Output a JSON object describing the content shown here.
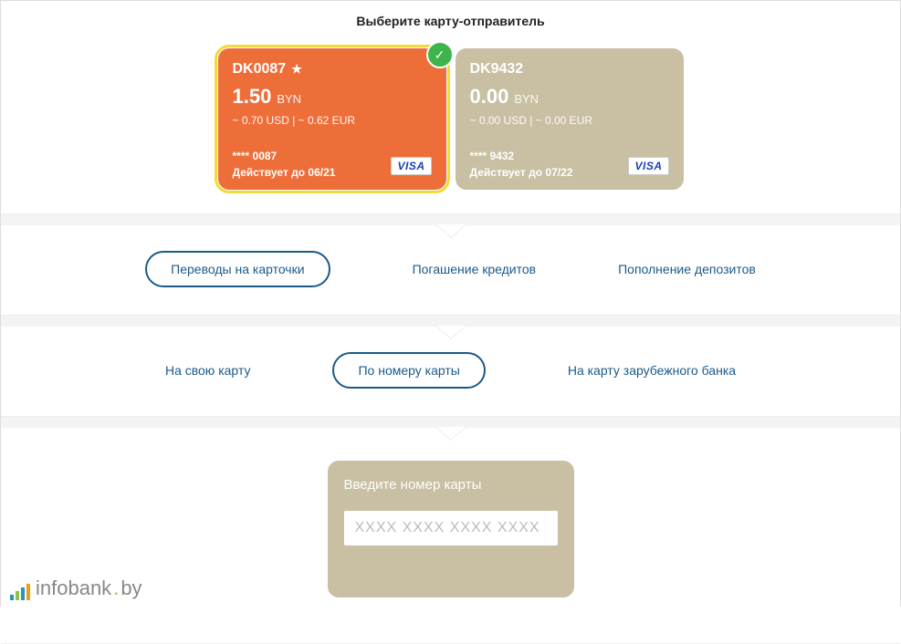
{
  "header": {
    "title": "Выберите карту-отправитель"
  },
  "cards": [
    {
      "name": "DK0087",
      "starred": true,
      "selected": true,
      "bg": "#ee6e3a",
      "balance": "1.50",
      "currency": "BYN",
      "converted": "~ 0.70 USD | ~ 0.62 EUR",
      "masked": "**** 0087",
      "expiry": "Действует до 06/21",
      "network": "VISA"
    },
    {
      "name": "DK9432",
      "starred": false,
      "selected": false,
      "bg": "#c9bfa3",
      "balance": "0.00",
      "currency": "BYN",
      "converted": "~ 0.00 USD | ~ 0.00 EUR",
      "masked": "**** 9432",
      "expiry": "Действует до 07/22",
      "network": "VISA"
    }
  ],
  "tabs1": {
    "items": [
      {
        "label": "Переводы на карточки",
        "active": true
      },
      {
        "label": "Погашение кредитов",
        "active": false
      },
      {
        "label": "Пополнение депозитов",
        "active": false
      }
    ]
  },
  "tabs2": {
    "items": [
      {
        "label": "На свою карту",
        "active": false
      },
      {
        "label": "По номеру карты",
        "active": true
      },
      {
        "label": "На карту зарубежного банка",
        "active": false
      }
    ]
  },
  "dest": {
    "label": "Введите номер карты",
    "placeholder": "XXXX XXXX XXXX XXXX"
  },
  "logo": {
    "text": "infobank",
    "suffix": "by"
  },
  "colors": {
    "accent": "#1a5a8a",
    "selected_outline": "#f5d936",
    "check": "#3eb54a"
  }
}
